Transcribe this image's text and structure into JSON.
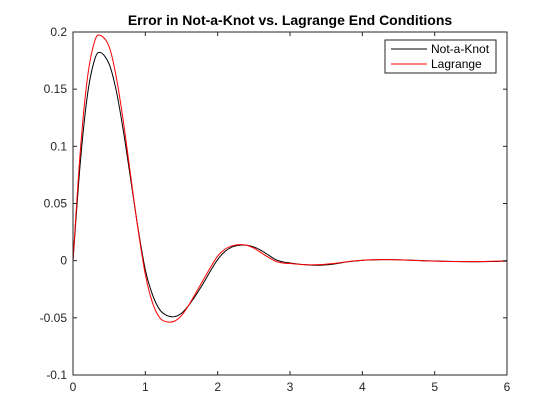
{
  "chart_data": {
    "type": "line",
    "title": "Error in Not-a-Knot vs. Lagrange End Conditions",
    "xlabel": "",
    "ylabel": "",
    "xlim": [
      0,
      6
    ],
    "ylim": [
      -0.1,
      0.2
    ],
    "xticks": [
      0,
      1,
      2,
      3,
      4,
      5,
      6
    ],
    "xtick_labels": [
      "0",
      "1",
      "2",
      "3",
      "4",
      "5",
      "6"
    ],
    "yticks": [
      -0.1,
      -0.05,
      0,
      0.05,
      0.1,
      0.15,
      0.2
    ],
    "ytick_labels": [
      "-0.1",
      "-0.05",
      "0",
      "0.05",
      "0.1",
      "0.15",
      "0.2"
    ],
    "grid": false,
    "legend_position": "top-right",
    "series": [
      {
        "name": "Not-a-Knot",
        "color": "#000000",
        "x": [
          0,
          0.1,
          0.2,
          0.3,
          0.38,
          0.5,
          0.6,
          0.7,
          0.8,
          0.9,
          1.0,
          1.1,
          1.2,
          1.3,
          1.4,
          1.5,
          1.6,
          1.7,
          1.8,
          1.9,
          2.0,
          2.1,
          2.2,
          2.3,
          2.4,
          2.5,
          2.6,
          2.7,
          2.8,
          2.9,
          3.0,
          3.2,
          3.4,
          3.6,
          3.8,
          4.0,
          4.2,
          4.4,
          4.6,
          4.8,
          5.0,
          5.2,
          5.4,
          5.6,
          5.8,
          6.0
        ],
        "y": [
          0,
          0.085,
          0.145,
          0.176,
          0.182,
          0.172,
          0.148,
          0.112,
          0.07,
          0.028,
          -0.008,
          -0.03,
          -0.043,
          -0.048,
          -0.049,
          -0.046,
          -0.039,
          -0.03,
          -0.02,
          -0.009,
          0.001,
          0.008,
          0.012,
          0.0135,
          0.0135,
          0.012,
          0.009,
          0.005,
          0.001,
          -0.001,
          -0.002,
          -0.0035,
          -0.004,
          -0.003,
          -0.001,
          0.0003,
          0.0008,
          0.0009,
          0.0006,
          0.0001,
          -0.0003,
          -0.0006,
          -0.0008,
          -0.0009,
          -0.0007,
          -0.0004
        ]
      },
      {
        "name": "Lagrange",
        "color": "#ff0000",
        "x": [
          0,
          0.1,
          0.2,
          0.3,
          0.38,
          0.5,
          0.6,
          0.7,
          0.8,
          0.9,
          1.0,
          1.1,
          1.2,
          1.3,
          1.4,
          1.5,
          1.6,
          1.7,
          1.8,
          1.9,
          2.0,
          2.1,
          2.2,
          2.3,
          2.4,
          2.5,
          2.6,
          2.7,
          2.8,
          2.9,
          3.0,
          3.2,
          3.4,
          3.6,
          3.8,
          4.0,
          4.2,
          4.4,
          4.6,
          4.8,
          5.0,
          5.2,
          5.4,
          5.6,
          5.8,
          6.0
        ],
        "y": [
          0,
          0.095,
          0.16,
          0.192,
          0.197,
          0.187,
          0.16,
          0.12,
          0.073,
          0.027,
          -0.012,
          -0.037,
          -0.05,
          -0.0535,
          -0.053,
          -0.048,
          -0.039,
          -0.028,
          -0.017,
          -0.006,
          0.004,
          0.01,
          0.013,
          0.014,
          0.0135,
          0.011,
          0.007,
          0.003,
          -0.0005,
          -0.002,
          -0.0025,
          -0.0035,
          -0.0035,
          -0.0025,
          -0.0008,
          0.0004,
          0.0009,
          0.0009,
          0.0005,
          0,
          -0.0004,
          -0.0007,
          -0.0008,
          -0.0008,
          -0.0005,
          -0.0002
        ]
      }
    ]
  }
}
